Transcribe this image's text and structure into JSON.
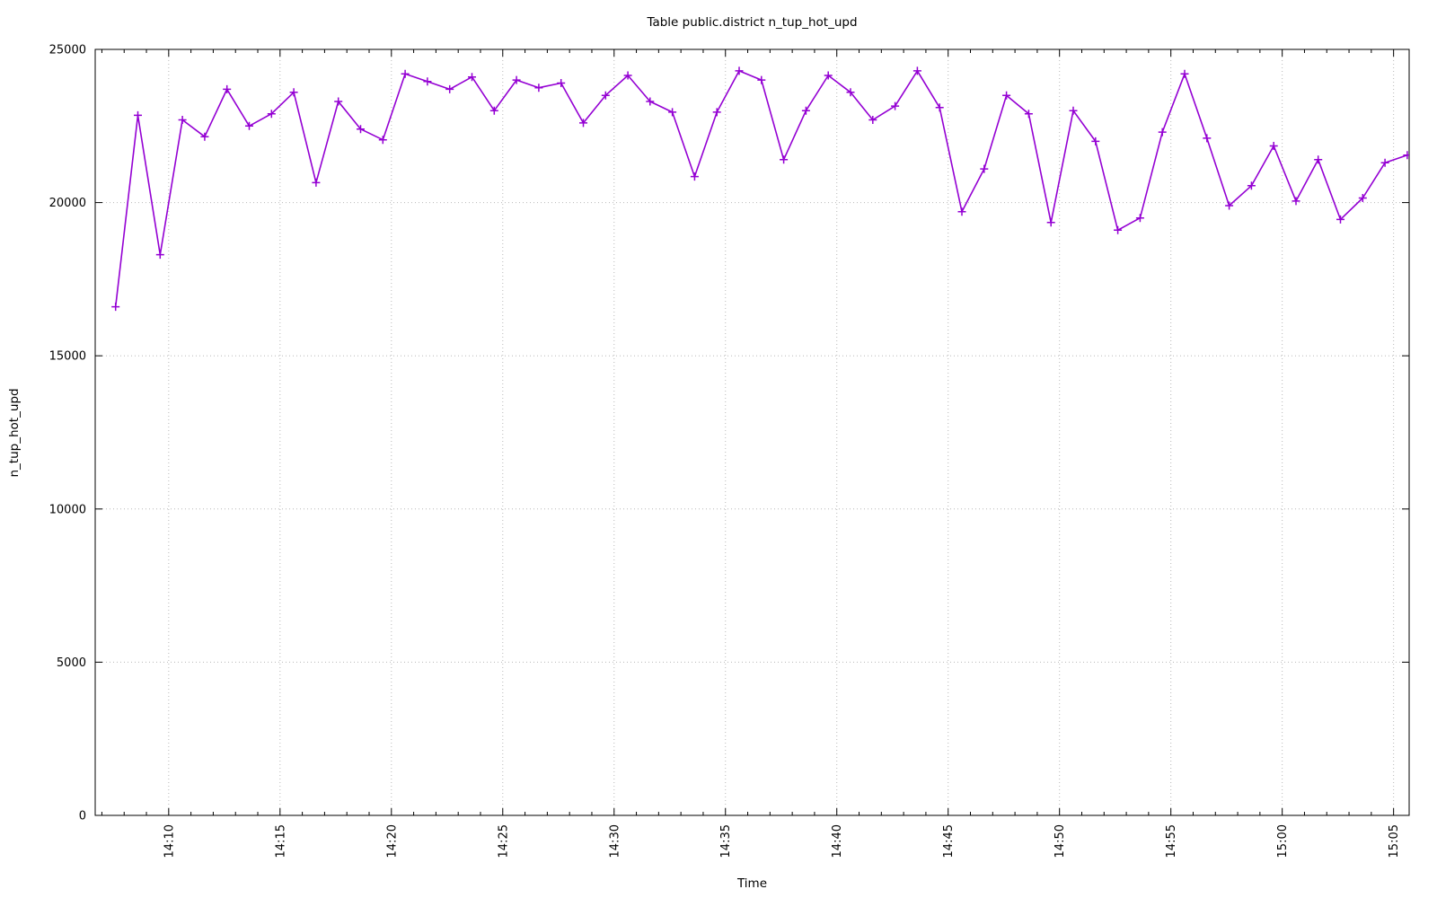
{
  "page": {
    "background": "#ffffff"
  },
  "chart_data": {
    "type": "line",
    "title": "Table public.district n_tup_hot_upd",
    "xlabel": "Time",
    "ylabel": "n_tup_hot_upd",
    "legend": "none",
    "grid": "dotted",
    "grid_color": "#b8b8b8",
    "line_color": "#9400D3",
    "marker": "plus",
    "ylim": [
      0,
      25000
    ],
    "y_tick_labels": [
      "0",
      "5000",
      "10000",
      "15000",
      "20000",
      "25000"
    ],
    "y_tick_values": [
      0,
      5000,
      10000,
      15000,
      20000,
      25000
    ],
    "x_tick_labels": [
      "14:10",
      "14:15",
      "14:20",
      "14:25",
      "14:30",
      "14:35",
      "14:40",
      "14:45",
      "14:50",
      "14:55",
      "15:00",
      "15:05"
    ],
    "x_minor_tick_interval_minutes": 1,
    "x_axis_range": [
      "14:06:42",
      "15:05:42"
    ],
    "times": [
      "14:07:37",
      "14:08:37",
      "14:09:37",
      "14:10:37",
      "14:11:37",
      "14:12:37",
      "14:13:37",
      "14:14:37",
      "14:15:37",
      "14:16:37",
      "14:17:37",
      "14:18:37",
      "14:19:37",
      "14:20:37",
      "14:21:37",
      "14:22:37",
      "14:23:37",
      "14:24:37",
      "14:25:37",
      "14:26:37",
      "14:27:37",
      "14:28:37",
      "14:29:37",
      "14:30:37",
      "14:31:37",
      "14:32:37",
      "14:33:37",
      "14:34:37",
      "14:35:37",
      "14:36:37",
      "14:37:37",
      "14:38:37",
      "14:39:37",
      "14:40:37",
      "14:41:37",
      "14:42:37",
      "14:43:37",
      "14:44:37",
      "14:45:37",
      "14:46:37",
      "14:47:37",
      "14:48:37",
      "14:49:37",
      "14:50:37",
      "14:51:37",
      "14:52:37",
      "14:53:37",
      "14:54:37",
      "14:55:37",
      "14:56:37",
      "14:57:37",
      "14:58:37",
      "14:59:37",
      "15:00:37",
      "15:01:37",
      "15:02:37",
      "15:03:37",
      "15:04:37",
      "15:05:37"
    ],
    "values": [
      16600,
      22850,
      18300,
      22700,
      22150,
      23700,
      22500,
      22900,
      23600,
      20650,
      23300,
      22400,
      22050,
      24200,
      23950,
      23700,
      24100,
      23000,
      24000,
      23750,
      23900,
      22600,
      23500,
      24150,
      23300,
      22950,
      20850,
      22950,
      24300,
      24000,
      21400,
      23000,
      24150,
      23600,
      22700,
      23150,
      24300,
      23100,
      19700,
      21100,
      23500,
      22900,
      19350,
      23000,
      22000,
      19100,
      19500,
      22300,
      24200,
      22100,
      19900,
      20550,
      21850,
      20050,
      21400,
      19450,
      20150,
      21300,
      21550
    ]
  }
}
